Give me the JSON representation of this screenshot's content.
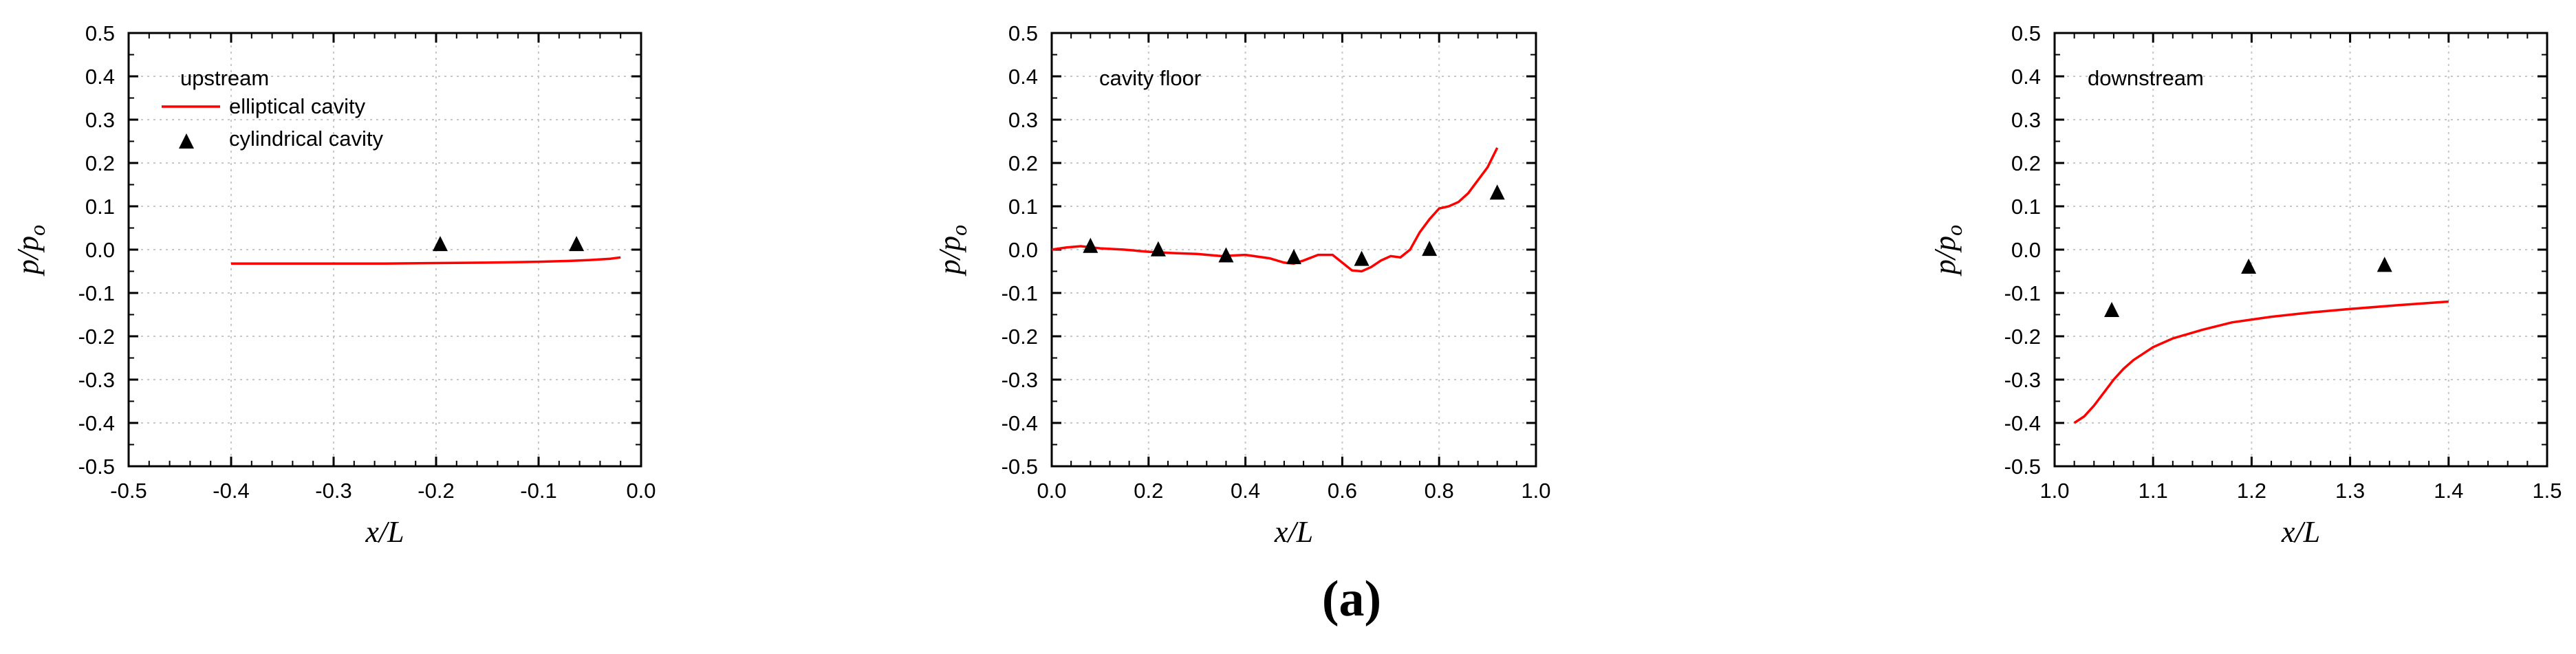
{
  "figure_label": "(a)",
  "chart_data": [
    {
      "type": "line",
      "title": "upstream",
      "xlabel": "x/L",
      "ylabel": "p/p_o",
      "ylabel_parts": [
        "p",
        "/",
        "p",
        "o"
      ],
      "xlim": [
        -0.5,
        0.0
      ],
      "ylim": [
        -0.5,
        0.5
      ],
      "xticks": [
        -0.5,
        -0.4,
        -0.3,
        -0.2,
        -0.1,
        0.0
      ],
      "xtick_labels": [
        "-0.5",
        "-0.4",
        "-0.3",
        "-0.2",
        "-0.1",
        "0.0"
      ],
      "yticks": [
        -0.5,
        -0.4,
        -0.3,
        -0.2,
        -0.1,
        0.0,
        0.1,
        0.2,
        0.3,
        0.4,
        0.5
      ],
      "ytick_labels": [
        "-0.5",
        "-0.4",
        "-0.3",
        "-0.2",
        "-0.1",
        "0.0",
        "0.1",
        "0.2",
        "0.3",
        "0.4",
        "0.5"
      ],
      "grid": true,
      "legend": {
        "title": "upstream",
        "position": "top-left",
        "entries": [
          "elliptical cavity",
          "cylindrical cavity"
        ]
      },
      "series": [
        {
          "name": "elliptical cavity",
          "kind": "line",
          "color": "#ff0000",
          "x": [
            -0.4,
            -0.35,
            -0.3,
            -0.25,
            -0.2,
            -0.15,
            -0.1,
            -0.07,
            -0.05,
            -0.03,
            -0.02
          ],
          "y": [
            -0.032,
            -0.032,
            -0.032,
            -0.032,
            -0.031,
            -0.03,
            -0.028,
            -0.026,
            -0.024,
            -0.021,
            -0.018
          ]
        },
        {
          "name": "cylindrical cavity",
          "kind": "marker",
          "color": "#000000",
          "x": [
            -0.196,
            -0.063
          ],
          "y": [
            0.014,
            0.014
          ]
        }
      ]
    },
    {
      "type": "line",
      "title": "cavity floor",
      "xlabel": "x/L",
      "ylabel": "p/p_o",
      "ylabel_parts": [
        "p",
        "/",
        "p",
        "o"
      ],
      "xlim": [
        0.0,
        1.0
      ],
      "ylim": [
        -0.5,
        0.5
      ],
      "xticks": [
        0.0,
        0.2,
        0.4,
        0.6,
        0.8,
        1.0
      ],
      "xtick_labels": [
        "0.0",
        "0.2",
        "0.4",
        "0.6",
        "0.8",
        "1.0"
      ],
      "yticks": [
        -0.5,
        -0.4,
        -0.3,
        -0.2,
        -0.1,
        0.0,
        0.1,
        0.2,
        0.3,
        0.4,
        0.5
      ],
      "ytick_labels": [
        "-0.5",
        "-0.4",
        "-0.3",
        "-0.2",
        "-0.1",
        "0.0",
        "0.1",
        "0.2",
        "0.3",
        "0.4",
        "0.5"
      ],
      "grid": true,
      "series": [
        {
          "name": "elliptical cavity",
          "kind": "line",
          "color": "#ff0000",
          "x": [
            0.0,
            0.03,
            0.06,
            0.1,
            0.15,
            0.2,
            0.25,
            0.3,
            0.35,
            0.4,
            0.45,
            0.48,
            0.5,
            0.52,
            0.55,
            0.58,
            0.6,
            0.62,
            0.64,
            0.66,
            0.68,
            0.7,
            0.72,
            0.74,
            0.76,
            0.78,
            0.8,
            0.82,
            0.84,
            0.86,
            0.88,
            0.9,
            0.92
          ],
          "y": [
            0.0,
            0.005,
            0.008,
            0.003,
            0.0,
            -0.005,
            -0.008,
            -0.01,
            -0.015,
            -0.012,
            -0.02,
            -0.03,
            -0.032,
            -0.025,
            -0.012,
            -0.012,
            -0.03,
            -0.048,
            -0.05,
            -0.04,
            -0.025,
            -0.015,
            -0.018,
            0.0,
            0.04,
            0.07,
            0.095,
            0.1,
            0.11,
            0.13,
            0.16,
            0.19,
            0.235
          ]
        },
        {
          "name": "cylindrical cavity",
          "kind": "marker",
          "color": "#000000",
          "x": [
            0.08,
            0.22,
            0.36,
            0.5,
            0.64,
            0.78,
            0.92
          ],
          "y": [
            0.01,
            0.002,
            -0.012,
            -0.016,
            -0.02,
            0.003,
            0.133
          ]
        }
      ]
    },
    {
      "type": "line",
      "title": "downstream",
      "xlabel": "x/L",
      "ylabel": "p/p_o",
      "ylabel_parts": [
        "p",
        "/",
        "p",
        "o"
      ],
      "xlim": [
        1.0,
        1.5
      ],
      "ylim": [
        -0.5,
        0.5
      ],
      "xticks": [
        1.0,
        1.1,
        1.2,
        1.3,
        1.4,
        1.5
      ],
      "xtick_labels": [
        "1.0",
        "1.1",
        "1.2",
        "1.3",
        "1.4",
        "1.5"
      ],
      "yticks": [
        -0.5,
        -0.4,
        -0.3,
        -0.2,
        -0.1,
        0.0,
        0.1,
        0.2,
        0.3,
        0.4,
        0.5
      ],
      "ytick_labels": [
        "-0.5",
        "-0.4",
        "-0.3",
        "-0.2",
        "-0.1",
        "0.0",
        "0.1",
        "0.2",
        "0.3",
        "0.4",
        "0.5"
      ],
      "grid": true,
      "series": [
        {
          "name": "elliptical cavity",
          "kind": "line",
          "color": "#ff0000",
          "x": [
            1.02,
            1.03,
            1.04,
            1.05,
            1.06,
            1.07,
            1.08,
            1.1,
            1.12,
            1.15,
            1.18,
            1.22,
            1.26,
            1.3,
            1.35,
            1.4
          ],
          "y": [
            -0.4,
            -0.385,
            -0.36,
            -0.33,
            -0.3,
            -0.275,
            -0.255,
            -0.225,
            -0.205,
            -0.185,
            -0.168,
            -0.155,
            -0.145,
            -0.137,
            -0.128,
            -0.12
          ]
        },
        {
          "name": "cylindrical cavity",
          "kind": "marker",
          "color": "#000000",
          "x": [
            1.058,
            1.197,
            1.335
          ],
          "y": [
            -0.138,
            -0.038,
            -0.034
          ]
        }
      ]
    }
  ]
}
